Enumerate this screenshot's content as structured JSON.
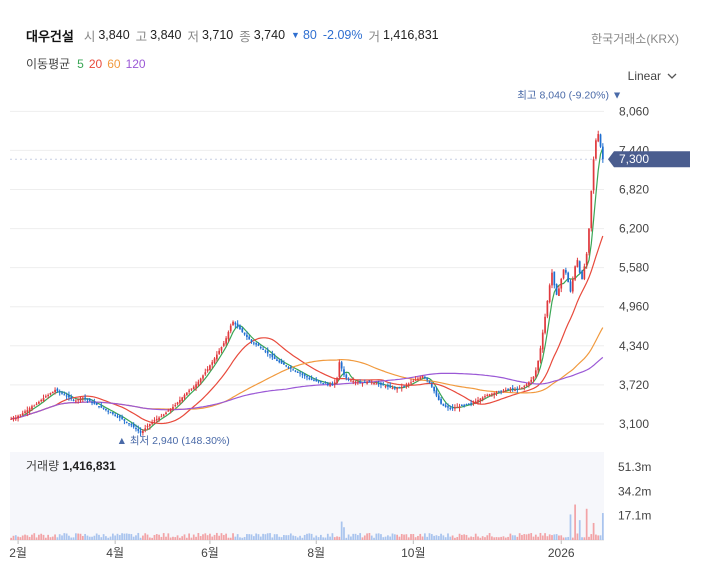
{
  "header": {
    "name": "대우건설",
    "open_label": "시",
    "open": "3,840",
    "high_label": "고",
    "high": "3,840",
    "low_label": "저",
    "low": "3,710",
    "close_label": "종",
    "close": "3,740",
    "change": "80",
    "change_pct": "-2.09%",
    "volume_label": "거",
    "volume": "1,416,831",
    "exchange": "한국거래소(KRX)"
  },
  "ma_legend": {
    "title": "이동평균",
    "items": [
      {
        "label": "5",
        "color": "#3aa655"
      },
      {
        "label": "20",
        "color": "#e84a3c"
      },
      {
        "label": "60",
        "color": "#f19a3e"
      },
      {
        "label": "120",
        "color": "#9b59d6"
      }
    ]
  },
  "scale_button": "Linear",
  "volume_panel": {
    "label": "거래량",
    "value": "1,416,831"
  },
  "chart_data": {
    "type": "candlestick",
    "title": "",
    "xlabel": "",
    "ylabel": "",
    "ylim": [
      2750,
      8240
    ],
    "yticks": [
      "3,100",
      "3,720",
      "4,340",
      "4,960",
      "5,580",
      "6,200",
      "6,820",
      "7,440",
      "8,060"
    ],
    "ytick_values": [
      3100,
      3720,
      4340,
      4960,
      5580,
      6200,
      6820,
      7440,
      8060
    ],
    "xticks": [
      "2월",
      "4월",
      "6월",
      "8월",
      "10월",
      "2026"
    ],
    "xtick_index": [
      3,
      45,
      86,
      132,
      174,
      238
    ],
    "current_price": {
      "label": "7,300",
      "value": 7300,
      "color": "#4a5d8f"
    },
    "max_annotation": {
      "text": "최고 8,040 (-9.20%)",
      "value": 8040,
      "index": 267
    },
    "min_annotation": {
      "text": "최저 2,940 (148.30%)",
      "value": 2940,
      "index": 56
    },
    "up_color": "#e03a3e",
    "down_color": "#1f6fd1",
    "close_series": [
      3180,
      3200,
      3190,
      3230,
      3250,
      3270,
      3300,
      3320,
      3350,
      3380,
      3390,
      3420,
      3450,
      3480,
      3510,
      3540,
      3560,
      3590,
      3610,
      3640,
      3620,
      3600,
      3580,
      3560,
      3540,
      3520,
      3500,
      3480,
      3470,
      3490,
      3510,
      3520,
      3500,
      3480,
      3460,
      3440,
      3420,
      3400,
      3380,
      3360,
      3340,
      3320,
      3300,
      3280,
      3260,
      3240,
      3220,
      3200,
      3180,
      3150,
      3120,
      3100,
      3080,
      3050,
      3020,
      2990,
      2960,
      2990,
      3030,
      3070,
      3100,
      3130,
      3160,
      3180,
      3200,
      3220,
      3250,
      3280,
      3310,
      3340,
      3370,
      3400,
      3440,
      3480,
      3520,
      3560,
      3600,
      3630,
      3660,
      3690,
      3730,
      3770,
      3820,
      3870,
      3920,
      3970,
      4030,
      4080,
      4140,
      4200,
      4260,
      4320,
      4380,
      4460,
      4560,
      4660,
      4720,
      4680,
      4640,
      4600,
      4560,
      4520,
      4480,
      4440,
      4400,
      4380,
      4360,
      4340,
      4310,
      4280,
      4250,
      4220,
      4190,
      4160,
      4130,
      4100,
      4080,
      4060,
      4040,
      4020,
      4000,
      3980,
      3960,
      3940,
      3920,
      3900,
      3880,
      3860,
      3840,
      3820,
      3800,
      3790,
      3780,
      3770,
      3760,
      3750,
      3740,
      3730,
      3720,
      3710,
      3760,
      3830,
      4080,
      3980,
      3880,
      3830,
      3800,
      3790,
      3780,
      3770,
      3760,
      3750,
      3750,
      3760,
      3770,
      3770,
      3760,
      3750,
      3740,
      3730,
      3720,
      3710,
      3700,
      3690,
      3680,
      3670,
      3660,
      3670,
      3680,
      3690,
      3700,
      3720,
      3740,
      3760,
      3780,
      3800,
      3820,
      3840,
      3860,
      3840,
      3800,
      3750,
      3690,
      3620,
      3550,
      3480,
      3420,
      3390,
      3370,
      3360,
      3350,
      3350,
      3360,
      3370,
      3380,
      3390,
      3400,
      3410,
      3420,
      3430,
      3440,
      3460,
      3480,
      3500,
      3520,
      3540,
      3560,
      3570,
      3580,
      3590,
      3600,
      3610,
      3620,
      3630,
      3640,
      3650,
      3660,
      3650,
      3640,
      3650,
      3660,
      3680,
      3700,
      3730,
      3760,
      3800,
      3850,
      3950,
      4100,
      4300,
      4550,
      4800,
      5050,
      5300,
      5500,
      5300,
      5150,
      5250,
      5400,
      5550,
      5500,
      5350,
      5200,
      5400,
      5600,
      5700,
      5500,
      5400,
      5600,
      5800,
      6200,
      6800,
      7300,
      7600,
      7700,
      7500,
      7300
    ],
    "volume_axis": [
      "51.3m",
      "34.2m",
      "17.1m"
    ],
    "volume_axis_values": [
      51.3,
      34.2,
      17.1
    ],
    "volume_max": 62,
    "volume_spikes": [
      {
        "index": 143,
        "value": 13
      },
      {
        "index": 144,
        "value": 9
      },
      {
        "index": 242,
        "value": 18
      },
      {
        "index": 244,
        "value": 25
      },
      {
        "index": 246,
        "value": 14
      },
      {
        "index": 249,
        "value": 22
      },
      {
        "index": 252,
        "value": 12
      },
      {
        "index": 256,
        "value": 19
      },
      {
        "index": 262,
        "value": 35
      },
      {
        "index": 264,
        "value": 58
      },
      {
        "index": 266,
        "value": 41
      },
      {
        "index": 268,
        "value": 20
      }
    ],
    "series": [
      {
        "name": "5",
        "period": 5,
        "color": "#3aa655"
      },
      {
        "name": "20",
        "period": 20,
        "color": "#e84a3c"
      },
      {
        "name": "60",
        "period": 60,
        "color": "#f19a3e"
      },
      {
        "name": "120",
        "period": 120,
        "color": "#9b59d6"
      }
    ]
  }
}
